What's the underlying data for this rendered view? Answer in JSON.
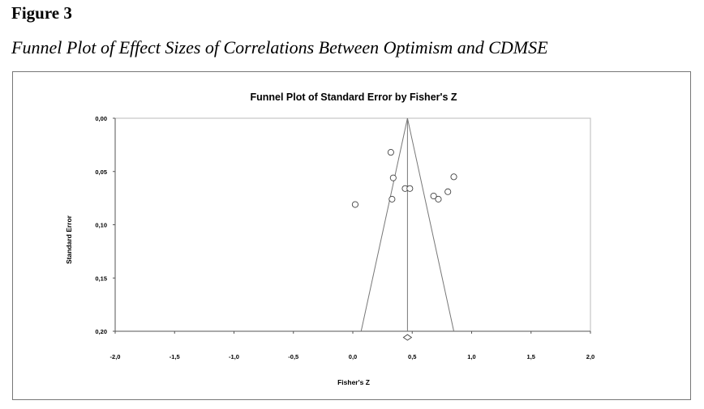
{
  "figure": {
    "label": "Figure 3",
    "title": "Funnel Plot of Effect Sizes of Correlations Between Optimism and CDMSE"
  },
  "chart_data": {
    "type": "scatter",
    "title": "Funnel Plot of Standard Error by Fisher's Z",
    "xlabel": "Fisher's Z",
    "ylabel": "Standard Error",
    "xlim": [
      -2.0,
      2.0
    ],
    "ylim": [
      0.0,
      0.2
    ],
    "y_inverted": true,
    "x_ticks": [
      "-2,0",
      "-1,5",
      "-1,0",
      "-0,5",
      "0,0",
      "0,5",
      "1,0",
      "1,5",
      "2,0"
    ],
    "x_tick_values": [
      -2.0,
      -1.5,
      -1.0,
      -0.5,
      0.0,
      0.5,
      1.0,
      1.5,
      2.0
    ],
    "y_ticks": [
      "0,00",
      "0,05",
      "0,10",
      "0,15",
      "0,20"
    ],
    "y_tick_values": [
      0.0,
      0.05,
      0.1,
      0.15,
      0.2
    ],
    "grid": false,
    "legend": "none",
    "studies": [
      {
        "x": 0.32,
        "y": 0.032
      },
      {
        "x": 0.34,
        "y": 0.056
      },
      {
        "x": 0.33,
        "y": 0.076
      },
      {
        "x": 0.44,
        "y": 0.066
      },
      {
        "x": 0.48,
        "y": 0.066
      },
      {
        "x": 0.02,
        "y": 0.081
      },
      {
        "x": 0.68,
        "y": 0.073
      },
      {
        "x": 0.72,
        "y": 0.076
      },
      {
        "x": 0.8,
        "y": 0.069
      },
      {
        "x": 0.85,
        "y": 0.055
      }
    ],
    "summary_effect": 0.46,
    "summary_diamond_y": 0.205,
    "funnel_lower_x_at_max_se": 0.07,
    "funnel_upper_x_at_max_se": 0.85
  },
  "colors": {
    "axis": "#555555",
    "marker": "#444444",
    "funnel": "#777777",
    "text": "#000000"
  }
}
